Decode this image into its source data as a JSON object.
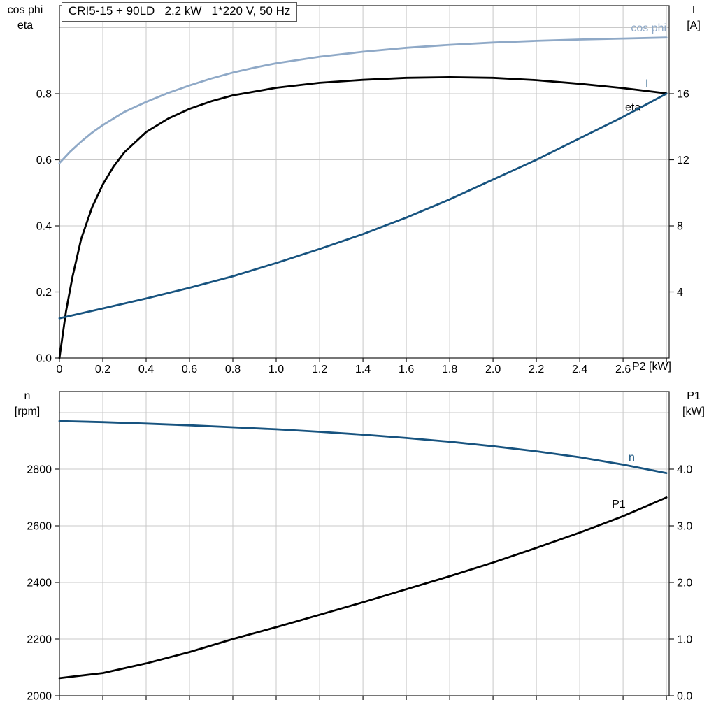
{
  "title_box": {
    "text": "CRI5-15 + 90LD   2.2 kW   1*220 V, 50 Hz"
  },
  "colors": {
    "light_blue": "#8fa9c7",
    "dark_blue": "#17537f",
    "black": "#000000",
    "grid": "#c9c9c9",
    "frame": "#1a1a1a"
  },
  "chart_data": [
    {
      "id": "motor-electrical",
      "type": "line",
      "x_axis_label": "P2 [kW]",
      "x_range": [
        0,
        2.8125
      ],
      "x_grid": [
        0.2,
        0.4,
        0.6,
        0.8,
        1.0,
        1.2,
        1.4,
        1.6,
        1.8,
        2.0,
        2.2,
        2.4,
        2.6,
        2.8
      ],
      "x_tick_values": [
        0,
        0.2,
        0.4,
        0.6,
        0.8,
        1.0,
        1.2,
        1.4,
        1.6,
        1.8,
        2.0,
        2.2,
        2.4,
        2.6,
        2.8
      ],
      "x_tick_labels": [
        "0",
        "0.2",
        "0.4",
        "0.6",
        "0.8",
        "1.0",
        "1.2",
        "1.4",
        "1.6",
        "1.8",
        "2.0",
        "2.2",
        "2.4",
        "2.6"
      ],
      "left_axis": {
        "title_lines": [
          "cos phi",
          "eta"
        ],
        "range": [
          0,
          1.06667
        ],
        "tick_values": [
          0,
          0.2,
          0.4,
          0.6,
          0.8
        ],
        "tick_labels": [
          "0.0",
          "0.2",
          "0.4",
          "0.6",
          "0.8"
        ],
        "grid_values": [
          0.2,
          0.4,
          0.6,
          0.8,
          1.0
        ]
      },
      "right_axis": {
        "title_lines": [
          "I",
          "[A]"
        ],
        "range": [
          0,
          21.3333
        ],
        "tick_values": [
          4,
          8,
          12,
          16
        ],
        "tick_labels": [
          "4",
          "8",
          "12",
          "16"
        ]
      },
      "series": [
        {
          "name": "cos phi",
          "axis": "left",
          "color": "light_blue",
          "label_at": [
            2.8,
            0.988
          ],
          "label_anchor": "end",
          "points": [
            [
              0,
              0.59
            ],
            [
              0.05,
              0.625
            ],
            [
              0.1,
              0.655
            ],
            [
              0.15,
              0.682
            ],
            [
              0.2,
              0.705
            ],
            [
              0.3,
              0.745
            ],
            [
              0.4,
              0.775
            ],
            [
              0.5,
              0.802
            ],
            [
              0.6,
              0.825
            ],
            [
              0.7,
              0.846
            ],
            [
              0.8,
              0.864
            ],
            [
              0.9,
              0.879
            ],
            [
              1.0,
              0.892
            ],
            [
              1.2,
              0.912
            ],
            [
              1.4,
              0.927
            ],
            [
              1.6,
              0.939
            ],
            [
              1.8,
              0.948
            ],
            [
              2.0,
              0.955
            ],
            [
              2.2,
              0.96
            ],
            [
              2.4,
              0.964
            ],
            [
              2.6,
              0.967
            ],
            [
              2.8,
              0.97
            ]
          ]
        },
        {
          "name": "eta",
          "axis": "left",
          "color": "black",
          "label_at": [
            2.645,
            0.748
          ],
          "label_anchor": "middle",
          "points": [
            [
              0,
              0
            ],
            [
              0.03,
              0.14
            ],
            [
              0.06,
              0.245
            ],
            [
              0.1,
              0.36
            ],
            [
              0.15,
              0.455
            ],
            [
              0.2,
              0.525
            ],
            [
              0.25,
              0.58
            ],
            [
              0.3,
              0.623
            ],
            [
              0.4,
              0.684
            ],
            [
              0.5,
              0.724
            ],
            [
              0.6,
              0.754
            ],
            [
              0.7,
              0.777
            ],
            [
              0.8,
              0.795
            ],
            [
              1.0,
              0.818
            ],
            [
              1.2,
              0.833
            ],
            [
              1.4,
              0.842
            ],
            [
              1.6,
              0.848
            ],
            [
              1.8,
              0.85
            ],
            [
              2.0,
              0.848
            ],
            [
              2.2,
              0.841
            ],
            [
              2.4,
              0.83
            ],
            [
              2.6,
              0.817
            ],
            [
              2.8,
              0.801
            ]
          ]
        },
        {
          "name": "I",
          "axis": "right",
          "color": "dark_blue",
          "label_at": [
            2.71,
            16.4
          ],
          "label_anchor": "middle",
          "points": [
            [
              0,
              2.4
            ],
            [
              0.2,
              3.0
            ],
            [
              0.4,
              3.6
            ],
            [
              0.6,
              4.25
            ],
            [
              0.8,
              4.95
            ],
            [
              1.0,
              5.75
            ],
            [
              1.2,
              6.6
            ],
            [
              1.4,
              7.5
            ],
            [
              1.6,
              8.5
            ],
            [
              1.8,
              9.6
            ],
            [
              2.0,
              10.8
            ],
            [
              2.2,
              12.0
            ],
            [
              2.4,
              13.3
            ],
            [
              2.6,
              14.6
            ],
            [
              2.8,
              16.0
            ]
          ]
        }
      ]
    },
    {
      "id": "motor-speed-power",
      "type": "line",
      "x_axis_label": "",
      "x_range": [
        0,
        2.8125
      ],
      "x_grid": [
        0.2,
        0.4,
        0.6,
        0.8,
        1.0,
        1.2,
        1.4,
        1.6,
        1.8,
        2.0,
        2.2,
        2.4,
        2.6,
        2.8
      ],
      "x_tick_values": [
        0,
        0.2,
        0.4,
        0.6,
        0.8,
        1.0,
        1.2,
        1.4,
        1.6,
        1.8,
        2.0,
        2.2,
        2.4,
        2.6,
        2.8
      ],
      "x_tick_labels": [],
      "left_axis": {
        "title_lines": [
          "n",
          "[rpm]"
        ],
        "range": [
          2000,
          3074
        ],
        "tick_values": [
          2000,
          2200,
          2400,
          2600,
          2800
        ],
        "tick_labels": [
          "2000",
          "2200",
          "2400",
          "2600",
          "2800"
        ],
        "grid_values": [
          2200,
          2400,
          2600,
          2800,
          3000
        ]
      },
      "right_axis": {
        "title_lines": [
          "P1",
          "[kW]"
        ],
        "range": [
          0,
          5.37
        ],
        "tick_values": [
          0,
          1,
          2,
          3,
          4
        ],
        "tick_labels": [
          "0.0",
          "1.0",
          "2.0",
          "3.0",
          "4.0"
        ]
      },
      "series": [
        {
          "name": "n",
          "axis": "left",
          "color": "dark_blue",
          "label_at": [
            2.64,
            2830
          ],
          "label_anchor": "middle",
          "points": [
            [
              0,
              2970
            ],
            [
              0.2,
              2966
            ],
            [
              0.4,
              2961
            ],
            [
              0.6,
              2955
            ],
            [
              0.8,
              2948
            ],
            [
              1.0,
              2941
            ],
            [
              1.2,
              2932
            ],
            [
              1.4,
              2922
            ],
            [
              1.6,
              2910
            ],
            [
              1.8,
              2897
            ],
            [
              2.0,
              2881
            ],
            [
              2.2,
              2863
            ],
            [
              2.4,
              2842
            ],
            [
              2.6,
              2816
            ],
            [
              2.8,
              2786
            ]
          ]
        },
        {
          "name": "P1",
          "axis": "right",
          "color": "black",
          "label_at": [
            2.58,
            3.32
          ],
          "label_anchor": "middle",
          "points": [
            [
              0,
              0.31
            ],
            [
              0.2,
              0.4
            ],
            [
              0.4,
              0.57
            ],
            [
              0.6,
              0.77
            ],
            [
              0.8,
              1.0
            ],
            [
              1.0,
              1.21
            ],
            [
              1.2,
              1.43
            ],
            [
              1.4,
              1.65
            ],
            [
              1.6,
              1.88
            ],
            [
              1.8,
              2.11
            ],
            [
              2.0,
              2.35
            ],
            [
              2.2,
              2.61
            ],
            [
              2.4,
              2.88
            ],
            [
              2.6,
              3.17
            ],
            [
              2.8,
              3.5
            ]
          ]
        }
      ]
    }
  ]
}
